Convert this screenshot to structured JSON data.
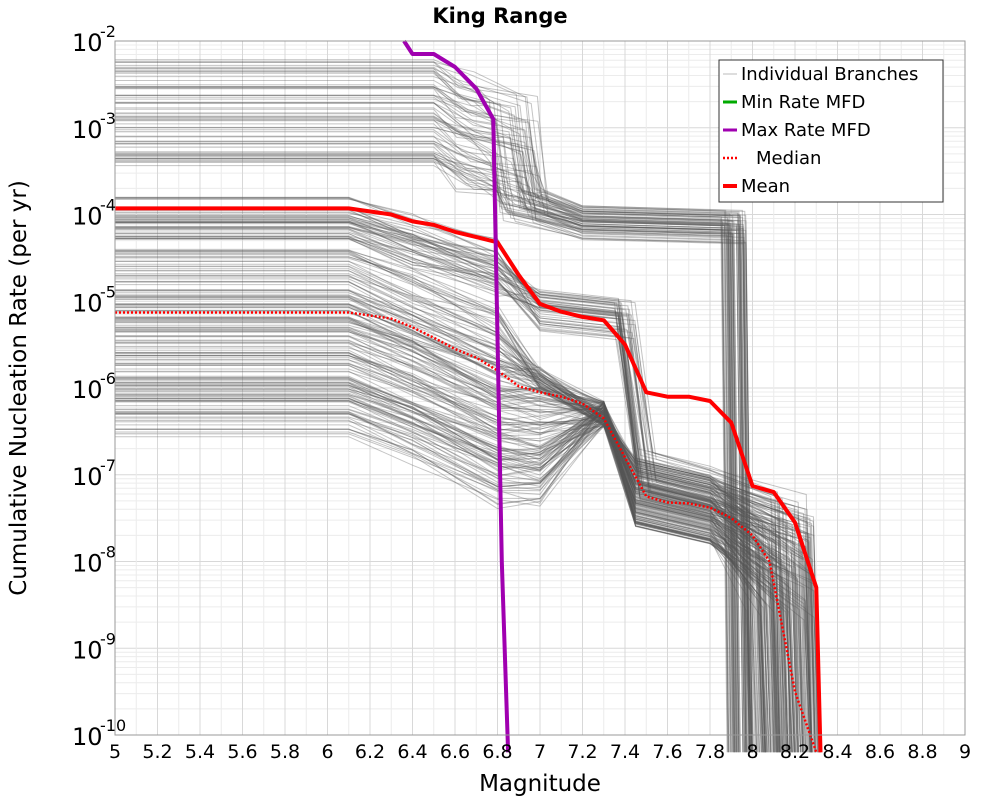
{
  "chart_data": {
    "type": "line",
    "title": "King Range",
    "xlabel": "Magnitude",
    "ylabel": "Cumulative Nucleation Rate (per yr)",
    "xlim": [
      5,
      9
    ],
    "ylim_log10": [
      -10,
      -2
    ],
    "x_ticks": [
      "5",
      "5.2",
      "5.4",
      "5.6",
      "5.8",
      "6",
      "6.2",
      "6.4",
      "6.6",
      "6.8",
      "7",
      "7.2",
      "7.4",
      "7.6",
      "7.8",
      "8",
      "8.2",
      "8.4",
      "8.6",
      "8.8",
      "9"
    ],
    "y_ticks": [
      {
        "base": "10",
        "exp": "-2",
        "log10": -2
      },
      {
        "base": "10",
        "exp": "-3",
        "log10": -3
      },
      {
        "base": "10",
        "exp": "-4",
        "log10": -4
      },
      {
        "base": "10",
        "exp": "-5",
        "log10": -5
      },
      {
        "base": "10",
        "exp": "-6",
        "log10": -6
      },
      {
        "base": "10",
        "exp": "-7",
        "log10": -7
      },
      {
        "base": "10",
        "exp": "-8",
        "log10": -8
      },
      {
        "base": "10",
        "exp": "-9",
        "log10": -9
      },
      {
        "base": "10",
        "exp": "-10",
        "log10": -10
      }
    ],
    "grid": true,
    "legend_position": "top-right",
    "legend": [
      {
        "label": "Individual Branches",
        "color": "#bbbbbb",
        "style": "solid-thin"
      },
      {
        "label": "Min Rate MFD",
        "color": "#00aa00",
        "style": "solid"
      },
      {
        "label": "Max Rate MFD",
        "color": "#a000b0",
        "style": "solid"
      },
      {
        "label": "Median",
        "color": "#ff0000",
        "style": "dotted"
      },
      {
        "label": "Mean",
        "color": "#ff0000",
        "style": "solid-thick"
      }
    ],
    "series": [
      {
        "name": "Mean",
        "color": "#ff0000",
        "points_log10": [
          [
            5.0,
            -3.93
          ],
          [
            6.1,
            -3.93
          ],
          [
            6.3,
            -4.0
          ],
          [
            6.4,
            -4.08
          ],
          [
            6.5,
            -4.12
          ],
          [
            6.6,
            -4.2
          ],
          [
            6.7,
            -4.26
          ],
          [
            6.8,
            -4.32
          ],
          [
            6.9,
            -4.7
          ],
          [
            7.0,
            -5.03
          ],
          [
            7.1,
            -5.12
          ],
          [
            7.2,
            -5.18
          ],
          [
            7.3,
            -5.22
          ],
          [
            7.4,
            -5.5
          ],
          [
            7.5,
            -6.05
          ],
          [
            7.6,
            -6.1
          ],
          [
            7.7,
            -6.1
          ],
          [
            7.8,
            -6.15
          ],
          [
            7.9,
            -6.4
          ],
          [
            8.0,
            -7.13
          ],
          [
            8.1,
            -7.2
          ],
          [
            8.2,
            -7.55
          ],
          [
            8.3,
            -8.3
          ],
          [
            8.32,
            -10.2
          ]
        ]
      },
      {
        "name": "Median",
        "color": "#ff0000",
        "points_log10": [
          [
            5.0,
            -5.13
          ],
          [
            6.1,
            -5.13
          ],
          [
            6.3,
            -5.2
          ],
          [
            6.4,
            -5.3
          ],
          [
            6.5,
            -5.42
          ],
          [
            6.6,
            -5.55
          ],
          [
            6.7,
            -5.65
          ],
          [
            6.8,
            -5.8
          ],
          [
            6.9,
            -5.98
          ],
          [
            7.0,
            -6.05
          ],
          [
            7.1,
            -6.1
          ],
          [
            7.2,
            -6.18
          ],
          [
            7.3,
            -6.35
          ],
          [
            7.4,
            -6.8
          ],
          [
            7.5,
            -7.25
          ],
          [
            7.6,
            -7.32
          ],
          [
            7.7,
            -7.33
          ],
          [
            7.8,
            -7.38
          ],
          [
            7.9,
            -7.5
          ],
          [
            8.0,
            -7.7
          ],
          [
            8.08,
            -8.0
          ],
          [
            8.2,
            -9.5
          ],
          [
            8.3,
            -10.2
          ]
        ]
      },
      {
        "name": "Max Rate MFD",
        "color": "#a000b0",
        "points_log10": [
          [
            6.36,
            -2.0
          ],
          [
            6.4,
            -2.15
          ],
          [
            6.5,
            -2.15
          ],
          [
            6.6,
            -2.3
          ],
          [
            6.7,
            -2.55
          ],
          [
            6.78,
            -2.9
          ],
          [
            6.82,
            -8.0
          ],
          [
            6.85,
            -10.2
          ]
        ]
      },
      {
        "name": "Individual Branches",
        "color": "#555555",
        "description_groups": [
          "high-rate cluster",
          "mid-rate cluster",
          "low-rate cluster"
        ],
        "groups": [
          {
            "level_log10_range": [
              -3.4,
              -2.2
            ],
            "shape": "flat to 6.5, drop at 6.8-7.0, plateau near 10^-4, drop at 7.9-8.0"
          },
          {
            "level_log10_range": [
              -4.3,
              -3.8
            ],
            "shape": "flat to 6.1, decline to 10^-5 plateau by 7.0, drop at 7.4, then 8.0-8.3"
          },
          {
            "level_log10_range": [
              -6.6,
              -4.4
            ],
            "shape": "flat to 6.1, gradual decline, drop at 7.4 to 10^-7 plateau, drop at 8.0-8.3"
          }
        ]
      }
    ]
  }
}
